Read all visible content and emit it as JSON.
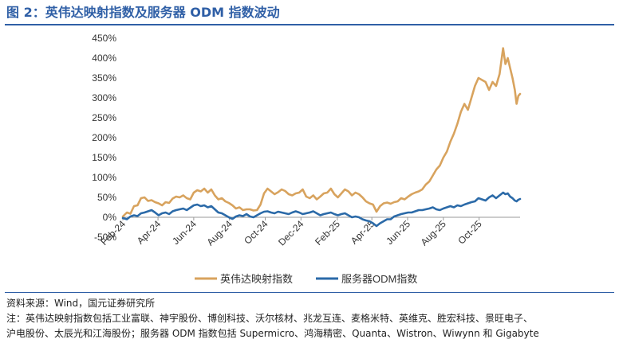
{
  "page": {
    "title": "图 2：英伟达映射指数及服务器 ODM 指数波动",
    "source": "资料来源：Wind，国元证券研究所",
    "note_line1": "注：英伟达映射指数包括工业富联、神宇股份、博创科技、沃尔核材、兆龙互连、麦格米特、英维克、胜宏科技、景旺电子、",
    "note_line2": "沪电股份、太辰光和江海股份；服务器 ODM 指数包括 Supermicro、鸿海精密、Quanta、Wistron、Wiwynn 和 Gigabyte"
  },
  "chart_data": {
    "type": "line",
    "x_tick_labels": [
      "Feb-24",
      "Apr-24",
      "Jun-24",
      "Aug-24",
      "Oct-24",
      "Dec-24",
      "Feb-25",
      "Apr-25",
      "Jun-25",
      "Aug-25",
      "Oct-25"
    ],
    "x_range": [
      "2024-02-01",
      "2025-12-10"
    ],
    "y_tick_labels": [
      "-50%",
      "0%",
      "50%",
      "100%",
      "150%",
      "200%",
      "250%",
      "300%",
      "350%",
      "400%",
      "450%"
    ],
    "ylim": [
      -50,
      450
    ],
    "y_unit": "%",
    "grid": false,
    "legend_position": "bottom",
    "series": [
      {
        "name": "英伟达映射指数",
        "color": "#d8a35e",
        "points": [
          [
            "2024-02-01",
            2
          ],
          [
            "2024-02-08",
            12
          ],
          [
            "2024-02-14",
            9
          ],
          [
            "2024-02-20",
            28
          ],
          [
            "2024-02-26",
            30
          ],
          [
            "2024-03-03",
            48
          ],
          [
            "2024-03-09",
            50
          ],
          [
            "2024-03-15",
            41
          ],
          [
            "2024-03-21",
            43
          ],
          [
            "2024-03-27",
            38
          ],
          [
            "2024-04-02",
            35
          ],
          [
            "2024-04-08",
            30
          ],
          [
            "2024-04-14",
            38
          ],
          [
            "2024-04-20",
            36
          ],
          [
            "2024-04-26",
            47
          ],
          [
            "2024-05-02",
            52
          ],
          [
            "2024-05-08",
            50
          ],
          [
            "2024-05-14",
            55
          ],
          [
            "2024-05-20",
            48
          ],
          [
            "2024-05-26",
            45
          ],
          [
            "2024-06-01",
            62
          ],
          [
            "2024-06-07",
            68
          ],
          [
            "2024-06-13",
            65
          ],
          [
            "2024-06-19",
            72
          ],
          [
            "2024-06-25",
            62
          ],
          [
            "2024-07-01",
            70
          ],
          [
            "2024-07-07",
            55
          ],
          [
            "2024-07-13",
            45
          ],
          [
            "2024-07-19",
            48
          ],
          [
            "2024-07-25",
            40
          ],
          [
            "2024-07-31",
            36
          ],
          [
            "2024-08-06",
            30
          ],
          [
            "2024-08-12",
            22
          ],
          [
            "2024-08-18",
            25
          ],
          [
            "2024-08-24",
            18
          ],
          [
            "2024-08-30",
            20
          ],
          [
            "2024-09-05",
            20
          ],
          [
            "2024-09-11",
            17
          ],
          [
            "2024-09-17",
            18
          ],
          [
            "2024-09-23",
            32
          ],
          [
            "2024-09-29",
            60
          ],
          [
            "2024-10-05",
            72
          ],
          [
            "2024-10-11",
            65
          ],
          [
            "2024-10-17",
            58
          ],
          [
            "2024-10-23",
            63
          ],
          [
            "2024-10-29",
            70
          ],
          [
            "2024-11-04",
            66
          ],
          [
            "2024-11-10",
            58
          ],
          [
            "2024-11-16",
            55
          ],
          [
            "2024-11-22",
            60
          ],
          [
            "2024-11-28",
            62
          ],
          [
            "2024-12-04",
            70
          ],
          [
            "2024-12-10",
            52
          ],
          [
            "2024-12-16",
            48
          ],
          [
            "2024-12-22",
            55
          ],
          [
            "2024-12-28",
            45
          ],
          [
            "2025-01-03",
            52
          ],
          [
            "2025-01-09",
            60
          ],
          [
            "2025-01-15",
            62
          ],
          [
            "2025-01-21",
            72
          ],
          [
            "2025-01-27",
            58
          ],
          [
            "2025-02-02",
            50
          ],
          [
            "2025-02-08",
            60
          ],
          [
            "2025-02-14",
            70
          ],
          [
            "2025-02-20",
            65
          ],
          [
            "2025-02-26",
            55
          ],
          [
            "2025-03-04",
            62
          ],
          [
            "2025-03-10",
            58
          ],
          [
            "2025-03-16",
            50
          ],
          [
            "2025-03-22",
            40
          ],
          [
            "2025-03-28",
            35
          ],
          [
            "2025-04-03",
            32
          ],
          [
            "2025-04-09",
            14
          ],
          [
            "2025-04-15",
            28
          ],
          [
            "2025-04-21",
            35
          ],
          [
            "2025-04-27",
            37
          ],
          [
            "2025-05-03",
            34
          ],
          [
            "2025-05-09",
            38
          ],
          [
            "2025-05-15",
            40
          ],
          [
            "2025-05-21",
            48
          ],
          [
            "2025-05-27",
            45
          ],
          [
            "2025-06-02",
            52
          ],
          [
            "2025-06-08",
            58
          ],
          [
            "2025-06-14",
            62
          ],
          [
            "2025-06-20",
            65
          ],
          [
            "2025-06-26",
            70
          ],
          [
            "2025-07-02",
            82
          ],
          [
            "2025-07-08",
            90
          ],
          [
            "2025-07-14",
            105
          ],
          [
            "2025-07-20",
            120
          ],
          [
            "2025-07-26",
            130
          ],
          [
            "2025-08-01",
            150
          ],
          [
            "2025-08-07",
            165
          ],
          [
            "2025-08-13",
            190
          ],
          [
            "2025-08-19",
            210
          ],
          [
            "2025-08-25",
            235
          ],
          [
            "2025-08-31",
            265
          ],
          [
            "2025-09-06",
            285
          ],
          [
            "2025-09-12",
            270
          ],
          [
            "2025-09-18",
            300
          ],
          [
            "2025-09-24",
            330
          ],
          [
            "2025-09-30",
            350
          ],
          [
            "2025-10-06",
            345
          ],
          [
            "2025-10-12",
            340
          ],
          [
            "2025-10-18",
            320
          ],
          [
            "2025-10-24",
            340
          ],
          [
            "2025-10-30",
            330
          ],
          [
            "2025-11-05",
            360
          ],
          [
            "2025-11-11",
            425
          ],
          [
            "2025-11-15",
            385
          ],
          [
            "2025-11-19",
            400
          ],
          [
            "2025-11-23",
            375
          ],
          [
            "2025-11-27",
            350
          ],
          [
            "2025-12-01",
            320
          ],
          [
            "2025-12-04",
            285
          ],
          [
            "2025-12-07",
            305
          ],
          [
            "2025-12-10",
            310
          ]
        ]
      },
      {
        "name": "服务器ODM指数",
        "color": "#2b6aa8",
        "points": [
          [
            "2024-02-01",
            -2
          ],
          [
            "2024-02-08",
            -5
          ],
          [
            "2024-02-14",
            2
          ],
          [
            "2024-02-20",
            5
          ],
          [
            "2024-02-26",
            3
          ],
          [
            "2024-03-03",
            10
          ],
          [
            "2024-03-09",
            12
          ],
          [
            "2024-03-15",
            15
          ],
          [
            "2024-03-21",
            18
          ],
          [
            "2024-03-27",
            12
          ],
          [
            "2024-04-02",
            5
          ],
          [
            "2024-04-08",
            10
          ],
          [
            "2024-04-14",
            12
          ],
          [
            "2024-04-20",
            8
          ],
          [
            "2024-04-26",
            15
          ],
          [
            "2024-05-02",
            18
          ],
          [
            "2024-05-08",
            20
          ],
          [
            "2024-05-14",
            22
          ],
          [
            "2024-05-20",
            18
          ],
          [
            "2024-05-26",
            24
          ],
          [
            "2024-06-01",
            30
          ],
          [
            "2024-06-07",
            32
          ],
          [
            "2024-06-13",
            28
          ],
          [
            "2024-06-19",
            30
          ],
          [
            "2024-06-25",
            25
          ],
          [
            "2024-07-01",
            28
          ],
          [
            "2024-07-07",
            20
          ],
          [
            "2024-07-13",
            12
          ],
          [
            "2024-07-19",
            10
          ],
          [
            "2024-07-25",
            5
          ],
          [
            "2024-07-31",
            0
          ],
          [
            "2024-08-06",
            -4
          ],
          [
            "2024-08-12",
            2
          ],
          [
            "2024-08-18",
            5
          ],
          [
            "2024-08-24",
            3
          ],
          [
            "2024-08-30",
            8
          ],
          [
            "2024-09-05",
            2
          ],
          [
            "2024-09-11",
            0
          ],
          [
            "2024-09-17",
            5
          ],
          [
            "2024-09-23",
            10
          ],
          [
            "2024-09-29",
            14
          ],
          [
            "2024-10-05",
            15
          ],
          [
            "2024-10-11",
            12
          ],
          [
            "2024-10-17",
            10
          ],
          [
            "2024-10-23",
            14
          ],
          [
            "2024-10-29",
            12
          ],
          [
            "2024-11-04",
            10
          ],
          [
            "2024-11-10",
            8
          ],
          [
            "2024-11-16",
            12
          ],
          [
            "2024-11-22",
            15
          ],
          [
            "2024-11-28",
            12
          ],
          [
            "2024-12-04",
            8
          ],
          [
            "2024-12-10",
            10
          ],
          [
            "2024-12-16",
            12
          ],
          [
            "2024-12-22",
            15
          ],
          [
            "2024-12-28",
            10
          ],
          [
            "2025-01-03",
            5
          ],
          [
            "2025-01-09",
            8
          ],
          [
            "2025-01-15",
            10
          ],
          [
            "2025-01-21",
            12
          ],
          [
            "2025-01-27",
            8
          ],
          [
            "2025-02-02",
            5
          ],
          [
            "2025-02-08",
            8
          ],
          [
            "2025-02-14",
            10
          ],
          [
            "2025-02-20",
            5
          ],
          [
            "2025-02-26",
            0
          ],
          [
            "2025-03-04",
            2
          ],
          [
            "2025-03-10",
            0
          ],
          [
            "2025-03-16",
            -5
          ],
          [
            "2025-03-22",
            -8
          ],
          [
            "2025-03-28",
            -10
          ],
          [
            "2025-04-03",
            -15
          ],
          [
            "2025-04-09",
            -22
          ],
          [
            "2025-04-15",
            -15
          ],
          [
            "2025-04-21",
            -10
          ],
          [
            "2025-04-27",
            -5
          ],
          [
            "2025-05-03",
            -5
          ],
          [
            "2025-05-09",
            2
          ],
          [
            "2025-05-15",
            5
          ],
          [
            "2025-05-21",
            8
          ],
          [
            "2025-05-27",
            10
          ],
          [
            "2025-06-02",
            12
          ],
          [
            "2025-06-08",
            12
          ],
          [
            "2025-06-14",
            15
          ],
          [
            "2025-06-20",
            18
          ],
          [
            "2025-06-26",
            18
          ],
          [
            "2025-07-02",
            20
          ],
          [
            "2025-07-08",
            22
          ],
          [
            "2025-07-14",
            25
          ],
          [
            "2025-07-20",
            20
          ],
          [
            "2025-07-26",
            18
          ],
          [
            "2025-08-01",
            22
          ],
          [
            "2025-08-07",
            25
          ],
          [
            "2025-08-13",
            28
          ],
          [
            "2025-08-19",
            25
          ],
          [
            "2025-08-25",
            30
          ],
          [
            "2025-08-31",
            28
          ],
          [
            "2025-09-06",
            32
          ],
          [
            "2025-09-12",
            35
          ],
          [
            "2025-09-18",
            38
          ],
          [
            "2025-09-24",
            40
          ],
          [
            "2025-09-30",
            48
          ],
          [
            "2025-10-06",
            45
          ],
          [
            "2025-10-12",
            42
          ],
          [
            "2025-10-18",
            50
          ],
          [
            "2025-10-24",
            55
          ],
          [
            "2025-10-30",
            48
          ],
          [
            "2025-11-05",
            55
          ],
          [
            "2025-11-11",
            62
          ],
          [
            "2025-11-15",
            58
          ],
          [
            "2025-11-19",
            60
          ],
          [
            "2025-11-23",
            52
          ],
          [
            "2025-11-27",
            48
          ],
          [
            "2025-12-01",
            42
          ],
          [
            "2025-12-04",
            40
          ],
          [
            "2025-12-07",
            44
          ],
          [
            "2025-12-10",
            46
          ]
        ]
      }
    ]
  }
}
